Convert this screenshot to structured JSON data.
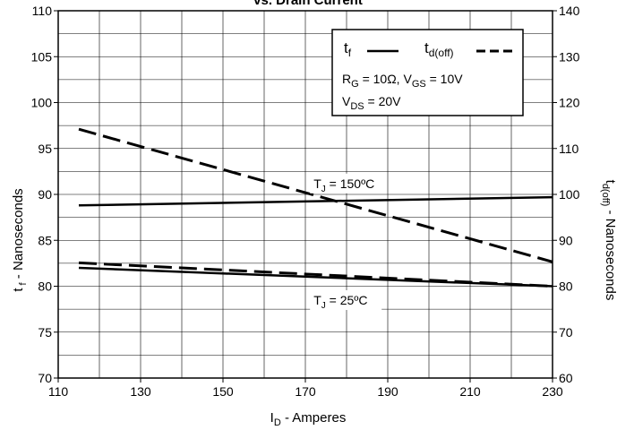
{
  "chart_data": {
    "type": "line",
    "title": "vs. Drain Current",
    "xlabel": {
      "main": "I",
      "sub": "D",
      "rest": " - Amperes"
    },
    "ylabel_left": {
      "main": "t",
      "sub": " f",
      "rest": " - Nanoseconds"
    },
    "ylabel_right": {
      "main": "t",
      "sub": "d(off)",
      "rest": " - Nanoseconds"
    },
    "xlim": [
      110,
      230
    ],
    "ylim_left": [
      70,
      110
    ],
    "ylim_right": [
      60,
      140
    ],
    "x_ticks": [
      110,
      130,
      150,
      170,
      190,
      210,
      230
    ],
    "y_ticks_left": [
      70,
      75,
      80,
      85,
      90,
      95,
      100,
      105,
      110
    ],
    "y_ticks_right": [
      60,
      70,
      80,
      90,
      100,
      110,
      120,
      130,
      140
    ],
    "grid": true,
    "series": [
      {
        "name": "t_f",
        "axis": "left",
        "dash": "solid",
        "x": [
          115,
          230
        ],
        "y": [
          88.8,
          89.7
        ]
      },
      {
        "name": "t_d(off)",
        "axis": "right",
        "dash": "dashed",
        "x": [
          115,
          230
        ],
        "y": [
          114.2,
          85.3
        ]
      },
      {
        "name": "t_f",
        "axis": "left",
        "dash": "solid",
        "x": [
          115,
          230
        ],
        "y": [
          82.0,
          80.0
        ]
      },
      {
        "name": "t_d(off)",
        "axis": "right",
        "dash": "dashed",
        "x": [
          115,
          230
        ],
        "y": [
          85.1,
          80.0
        ]
      }
    ],
    "legend": {
      "placement": "top-right",
      "entries": [
        {
          "main": "t",
          "sub": "f",
          "dash": "solid"
        },
        {
          "main": "t",
          "sub": "d(off)",
          "dash": "dashed"
        }
      ],
      "conditions": [
        [
          {
            "t": "R"
          },
          {
            "t": "G",
            "sub": true
          },
          {
            "t": " = 10Ω, V"
          },
          {
            "t": "GS",
            "sub": true
          },
          {
            "t": " = 10V"
          }
        ],
        [
          {
            "t": "V"
          },
          {
            "t": "DS",
            "sub": true
          },
          {
            "t": " = 20V"
          }
        ]
      ]
    },
    "annotations": [
      {
        "main": "T",
        "sub": "J",
        "rest": " = 150ºC",
        "x": 172,
        "y_left": 90.7
      },
      {
        "main": "T",
        "sub": "J",
        "rest": " = 25ºC",
        "x": 172,
        "y_left": 78.0
      }
    ]
  }
}
